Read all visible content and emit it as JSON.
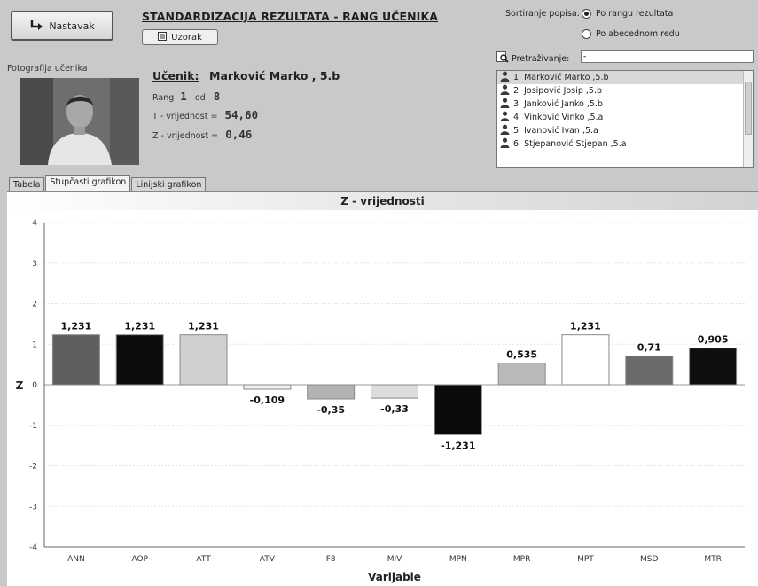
{
  "toolbar": {
    "next_label": "Nastavak",
    "sample_label": "Uzorak"
  },
  "header": {
    "title": "STANDARDIZACIJA REZULTATA - RANG UČENIKA"
  },
  "student": {
    "photo_label": "Fotografija učenika",
    "name_label": "Učenik:",
    "name": "Marković Marko , 5.b",
    "rank_label": "Rang",
    "rank": "1",
    "rank_of": "od",
    "rank_total": "8",
    "t_label": "T - vrijednost =",
    "t_value": "54,60",
    "z_label": "Z - vrijednost =",
    "z_value": "0,46"
  },
  "sorting": {
    "label": "Sortiranje popisa:",
    "options": [
      "Po rangu rezultata",
      "Po abecednom redu"
    ],
    "selected": 0
  },
  "search": {
    "label": "Pretraživanje:",
    "value": "-"
  },
  "students_list": [
    "1. Marković Marko ,5.b",
    "2. Josipović Josip ,5.b",
    "3. Janković Janko ,5.b",
    "4. Vinković Vinko ,5.a",
    "5. Ivanović Ivan ,5.a",
    "6. Stjepanović Stjepan ,5.a"
  ],
  "tabs": [
    "Tabela",
    "Stupčasti grafikon",
    "Linijski grafikon"
  ],
  "active_tab": 1,
  "chart_data": {
    "type": "bar",
    "title": "Z - vrijednosti",
    "xlabel": "Varijable",
    "ylabel": "Z",
    "ylim": [
      -4,
      4
    ],
    "yticks": [
      4,
      3,
      2,
      1,
      0,
      -1,
      -2,
      -3,
      -4
    ],
    "categories": [
      "ANN",
      "AOP",
      "ATT",
      "ATV",
      "F8",
      "MIV",
      "MPN",
      "MPR",
      "MPT",
      "MSD",
      "MTR"
    ],
    "values": [
      1.231,
      1.231,
      1.231,
      -0.109,
      -0.35,
      -0.33,
      -1.231,
      0.535,
      1.231,
      0.71,
      0.905
    ],
    "value_labels": [
      "1,231",
      "1,231",
      "1,231",
      "-0,109",
      "-0,35",
      "-0,33",
      "-1,231",
      "0,535",
      "1,231",
      "0,71",
      "0,905"
    ],
    "colors": [
      "#5f5f5f",
      "#0c0c0c",
      "#cfcfcf",
      "#f0f0f0",
      "#b3b3b3",
      "#dcdcdc",
      "#0a0a0a",
      "#b9b9b9",
      "#ffffff",
      "#6b6b6b",
      "#0f0f0f"
    ],
    "grid": true,
    "legend": "none"
  }
}
